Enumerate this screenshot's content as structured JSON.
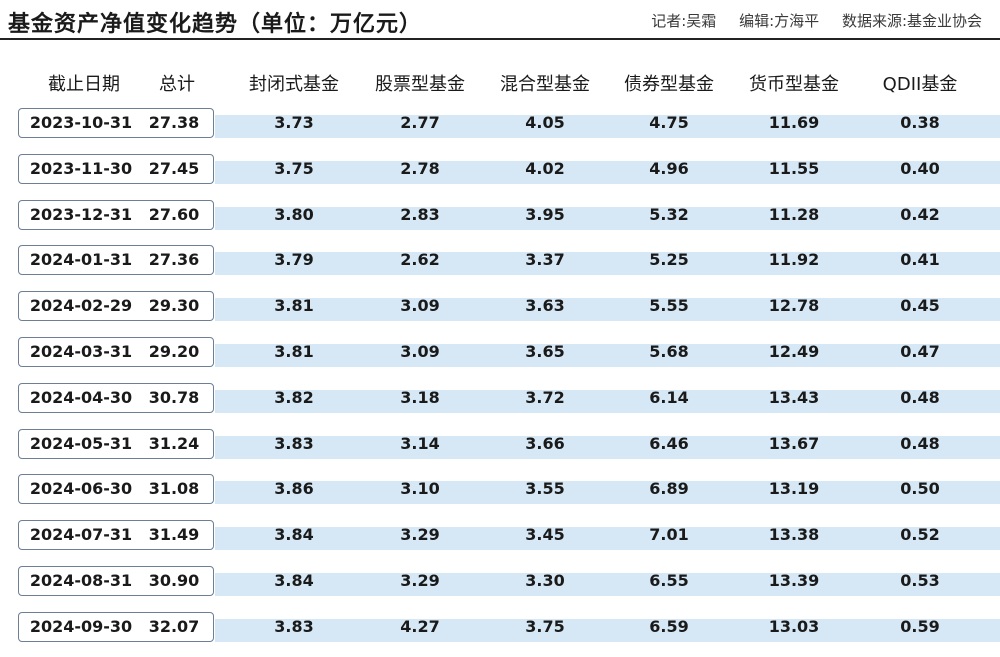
{
  "header": {
    "title": "基金资产净值变化趋势（单位：万亿元）",
    "reporter": "记者:吴霜",
    "editor": "编辑:方海平",
    "source": "数据来源:基金业协会"
  },
  "chart_data": {
    "type": "table",
    "columns": [
      "截止日期",
      "总计",
      "封闭式基金",
      "股票型基金",
      "混合型基金",
      "债券型基金",
      "货币型基金",
      "QDII基金"
    ],
    "rows": [
      {
        "date": "2023-10-31",
        "total": "27.38",
        "values": [
          "3.73",
          "2.77",
          "4.05",
          "4.75",
          "11.69",
          "0.38"
        ]
      },
      {
        "date": "2023-11-30",
        "total": "27.45",
        "values": [
          "3.75",
          "2.78",
          "4.02",
          "4.96",
          "11.55",
          "0.40"
        ]
      },
      {
        "date": "2023-12-31",
        "total": "27.60",
        "values": [
          "3.80",
          "2.83",
          "3.95",
          "5.32",
          "11.28",
          "0.42"
        ]
      },
      {
        "date": "2024-01-31",
        "total": "27.36",
        "values": [
          "3.79",
          "2.62",
          "3.37",
          "5.25",
          "11.92",
          "0.41"
        ]
      },
      {
        "date": "2024-02-29",
        "total": "29.30",
        "values": [
          "3.81",
          "3.09",
          "3.63",
          "5.55",
          "12.78",
          "0.45"
        ]
      },
      {
        "date": "2024-03-31",
        "total": "29.20",
        "values": [
          "3.81",
          "3.09",
          "3.65",
          "5.68",
          "12.49",
          "0.47"
        ]
      },
      {
        "date": "2024-04-30",
        "total": "30.78",
        "values": [
          "3.82",
          "3.18",
          "3.72",
          "6.14",
          "13.43",
          "0.48"
        ]
      },
      {
        "date": "2024-05-31",
        "total": "31.24",
        "values": [
          "3.83",
          "3.14",
          "3.66",
          "6.46",
          "13.67",
          "0.48"
        ]
      },
      {
        "date": "2024-06-30",
        "total": "31.08",
        "values": [
          "3.86",
          "3.10",
          "3.55",
          "6.89",
          "13.19",
          "0.50"
        ]
      },
      {
        "date": "2024-07-31",
        "total": "31.49",
        "values": [
          "3.84",
          "3.29",
          "3.45",
          "7.01",
          "13.38",
          "0.52"
        ]
      },
      {
        "date": "2024-08-31",
        "total": "30.90",
        "values": [
          "3.84",
          "3.29",
          "3.30",
          "6.55",
          "13.39",
          "0.53"
        ]
      },
      {
        "date": "2024-09-30",
        "total": "32.07",
        "values": [
          "3.83",
          "4.27",
          "3.75",
          "6.59",
          "13.03",
          "0.59"
        ]
      }
    ]
  },
  "colors": {
    "band": "#d6e8f5",
    "box_border": "#6c7f95",
    "rule": "#222222"
  }
}
